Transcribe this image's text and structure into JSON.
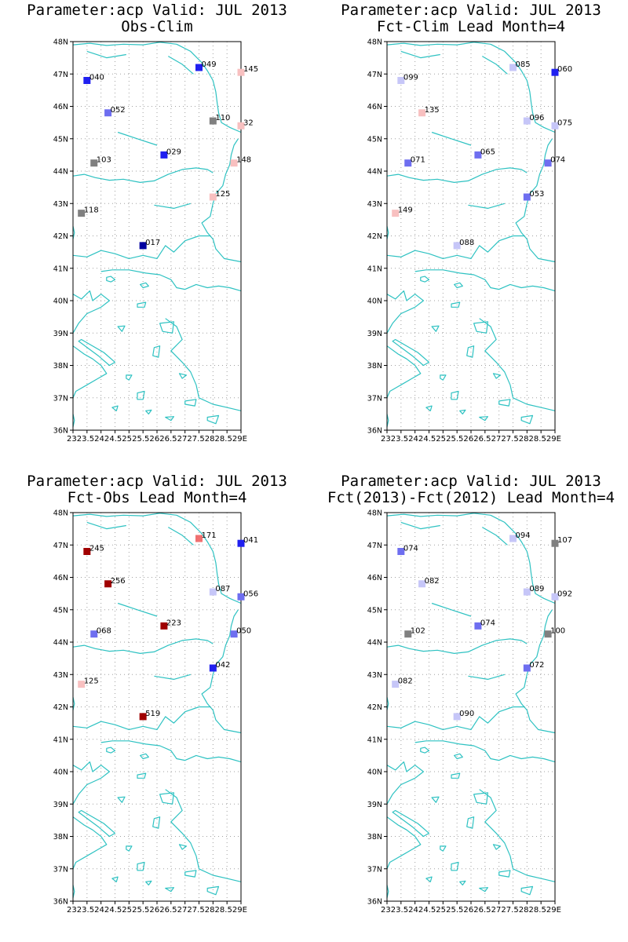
{
  "colors": {
    "coast": "#2ec2c2",
    "grid": "#a0a0a0",
    "dark_blue": "#0000a0",
    "blue": "#2020f0",
    "mid_blue": "#6e6ef0",
    "light_blue": "#c6c6f8",
    "gray": "#808080",
    "light_red": "#f8c0c0",
    "red": "#f07070",
    "dark_red": "#a00000"
  },
  "axes": {
    "lon_range": [
      23,
      29
    ],
    "lat_range": [
      36,
      48
    ],
    "lat_ticks": [
      "48N",
      "47N",
      "46N",
      "45N",
      "44N",
      "43N",
      "42N",
      "41N",
      "40N",
      "39N",
      "38N",
      "37N",
      "36N"
    ],
    "lon_ticks": [
      "23",
      "23.5",
      "24",
      "24.5",
      "25",
      "25.5",
      "26",
      "26.5",
      "27",
      "27.5",
      "28",
      "28.5",
      "29E"
    ],
    "lon_tick_text": "2323.52424.52525.52626.52727.52828.529E"
  },
  "chart_data": [
    {
      "type": "scatter",
      "title": "Parameter:acp Valid: JUL 2013",
      "subtitle": "Obs-Clim",
      "points": [
        {
          "lon": 23.5,
          "lat": 46.8,
          "label": "040",
          "color": "blue"
        },
        {
          "lon": 27.5,
          "lat": 47.2,
          "label": "049",
          "color": "blue"
        },
        {
          "lon": 29.0,
          "lat": 47.05,
          "label": "145",
          "color": "light_red"
        },
        {
          "lon": 24.25,
          "lat": 45.8,
          "label": "052",
          "color": "mid_blue"
        },
        {
          "lon": 28.0,
          "lat": 45.55,
          "label": "110",
          "color": "gray"
        },
        {
          "lon": 29.0,
          "lat": 45.4,
          "label": "32",
          "color": "light_red"
        },
        {
          "lon": 26.25,
          "lat": 44.5,
          "label": "029",
          "color": "blue"
        },
        {
          "lon": 23.75,
          "lat": 44.25,
          "label": "103",
          "color": "gray"
        },
        {
          "lon": 28.75,
          "lat": 44.25,
          "label": "148",
          "color": "light_red"
        },
        {
          "lon": 28.0,
          "lat": 43.2,
          "label": "125",
          "color": "light_red"
        },
        {
          "lon": 23.3,
          "lat": 42.7,
          "label": "118",
          "color": "gray"
        },
        {
          "lon": 25.5,
          "lat": 41.7,
          "label": "017",
          "color": "dark_blue"
        }
      ]
    },
    {
      "type": "scatter",
      "title": "Parameter:acp Valid: JUL 2013",
      "subtitle": "Fct-Clim Lead Month=4",
      "points": [
        {
          "lon": 23.5,
          "lat": 46.8,
          "label": "099",
          "color": "light_blue"
        },
        {
          "lon": 27.5,
          "lat": 47.2,
          "label": "085",
          "color": "light_blue"
        },
        {
          "lon": 29.0,
          "lat": 47.05,
          "label": "060",
          "color": "blue"
        },
        {
          "lon": 24.25,
          "lat": 45.8,
          "label": "135",
          "color": "light_red"
        },
        {
          "lon": 28.0,
          "lat": 45.55,
          "label": "096",
          "color": "light_blue"
        },
        {
          "lon": 29.0,
          "lat": 45.4,
          "label": "075",
          "color": "light_blue"
        },
        {
          "lon": 26.25,
          "lat": 44.5,
          "label": "065",
          "color": "mid_blue"
        },
        {
          "lon": 23.75,
          "lat": 44.25,
          "label": "071",
          "color": "mid_blue"
        },
        {
          "lon": 28.75,
          "lat": 44.25,
          "label": "074",
          "color": "mid_blue"
        },
        {
          "lon": 28.0,
          "lat": 43.2,
          "label": "053",
          "color": "mid_blue"
        },
        {
          "lon": 23.3,
          "lat": 42.7,
          "label": "149",
          "color": "light_red"
        },
        {
          "lon": 25.5,
          "lat": 41.7,
          "label": "088",
          "color": "light_blue"
        }
      ]
    },
    {
      "type": "scatter",
      "title": "Parameter:acp Valid: JUL 2013",
      "subtitle": "Fct-Obs Lead Month=4",
      "points": [
        {
          "lon": 23.5,
          "lat": 46.8,
          "label": "245",
          "color": "dark_red"
        },
        {
          "lon": 27.5,
          "lat": 47.2,
          "label": "171",
          "color": "red"
        },
        {
          "lon": 29.0,
          "lat": 47.05,
          "label": "041",
          "color": "blue"
        },
        {
          "lon": 24.25,
          "lat": 45.8,
          "label": "256",
          "color": "dark_red"
        },
        {
          "lon": 28.0,
          "lat": 45.55,
          "label": "087",
          "color": "light_blue"
        },
        {
          "lon": 29.0,
          "lat": 45.4,
          "label": "056",
          "color": "mid_blue"
        },
        {
          "lon": 26.25,
          "lat": 44.5,
          "label": "223",
          "color": "dark_red"
        },
        {
          "lon": 23.75,
          "lat": 44.25,
          "label": "068",
          "color": "mid_blue"
        },
        {
          "lon": 28.75,
          "lat": 44.25,
          "label": "050",
          "color": "mid_blue"
        },
        {
          "lon": 28.0,
          "lat": 43.2,
          "label": "042",
          "color": "blue"
        },
        {
          "lon": 23.3,
          "lat": 42.7,
          "label": "125",
          "color": "light_red"
        },
        {
          "lon": 25.5,
          "lat": 41.7,
          "label": "519",
          "color": "dark_red"
        }
      ]
    },
    {
      "type": "scatter",
      "title": "Parameter:acp Valid: JUL 2013",
      "subtitle": "Fct(2013)-Fct(2012) Lead Month=4",
      "points": [
        {
          "lon": 23.5,
          "lat": 46.8,
          "label": "074",
          "color": "mid_blue"
        },
        {
          "lon": 27.5,
          "lat": 47.2,
          "label": "094",
          "color": "light_blue"
        },
        {
          "lon": 29.0,
          "lat": 47.05,
          "label": "107",
          "color": "gray"
        },
        {
          "lon": 24.25,
          "lat": 45.8,
          "label": "082",
          "color": "light_blue"
        },
        {
          "lon": 28.0,
          "lat": 45.55,
          "label": "089",
          "color": "light_blue"
        },
        {
          "lon": 29.0,
          "lat": 45.4,
          "label": "092",
          "color": "light_blue"
        },
        {
          "lon": 26.25,
          "lat": 44.5,
          "label": "074",
          "color": "mid_blue"
        },
        {
          "lon": 23.75,
          "lat": 44.25,
          "label": "102",
          "color": "gray"
        },
        {
          "lon": 28.75,
          "lat": 44.25,
          "label": "100",
          "color": "gray"
        },
        {
          "lon": 28.0,
          "lat": 43.2,
          "label": "072",
          "color": "mid_blue"
        },
        {
          "lon": 23.3,
          "lat": 42.7,
          "label": "082",
          "color": "light_blue"
        },
        {
          "lon": 25.5,
          "lat": 41.7,
          "label": "090",
          "color": "light_blue"
        }
      ]
    }
  ]
}
